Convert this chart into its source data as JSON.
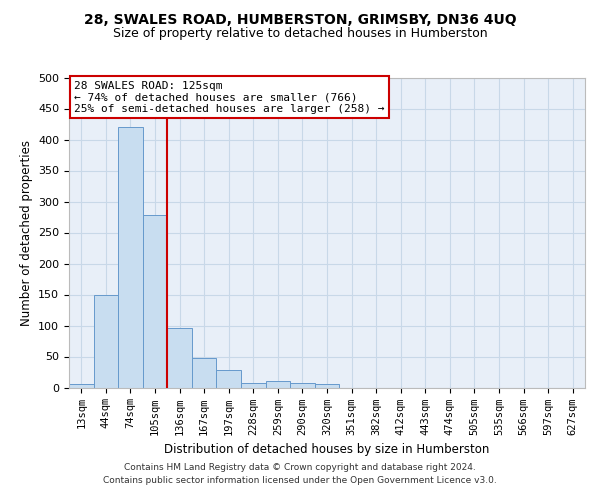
{
  "title_line1": "28, SWALES ROAD, HUMBERSTON, GRIMSBY, DN36 4UQ",
  "title_line2": "Size of property relative to detached houses in Humberston",
  "xlabel": "Distribution of detached houses by size in Humberston",
  "ylabel": "Number of detached properties",
  "footnote1": "Contains HM Land Registry data © Crown copyright and database right 2024.",
  "footnote2": "Contains public sector information licensed under the Open Government Licence v3.0.",
  "annotation_title": "28 SWALES ROAD: 125sqm",
  "annotation_line1": "← 74% of detached houses are smaller (766)",
  "annotation_line2": "25% of semi-detached houses are larger (258) →",
  "bar_color": "#c8ddf0",
  "bar_edge_color": "#6699cc",
  "vline_color": "#cc0000",
  "annotation_box_edgecolor": "#cc0000",
  "grid_color": "#c8d8e8",
  "bg_color": "#e8eff8",
  "categories": [
    "13sqm",
    "44sqm",
    "74sqm",
    "105sqm",
    "136sqm",
    "167sqm",
    "197sqm",
    "228sqm",
    "259sqm",
    "290sqm",
    "320sqm",
    "351sqm",
    "382sqm",
    "412sqm",
    "443sqm",
    "474sqm",
    "505sqm",
    "535sqm",
    "566sqm",
    "597sqm",
    "627sqm"
  ],
  "values": [
    5,
    150,
    420,
    278,
    96,
    48,
    28,
    8,
    10,
    8,
    5,
    0,
    0,
    0,
    0,
    0,
    0,
    0,
    0,
    0,
    0
  ],
  "ylim": [
    0,
    500
  ],
  "yticks": [
    0,
    50,
    100,
    150,
    200,
    250,
    300,
    350,
    400,
    450,
    500
  ],
  "vline_position": 3.5
}
